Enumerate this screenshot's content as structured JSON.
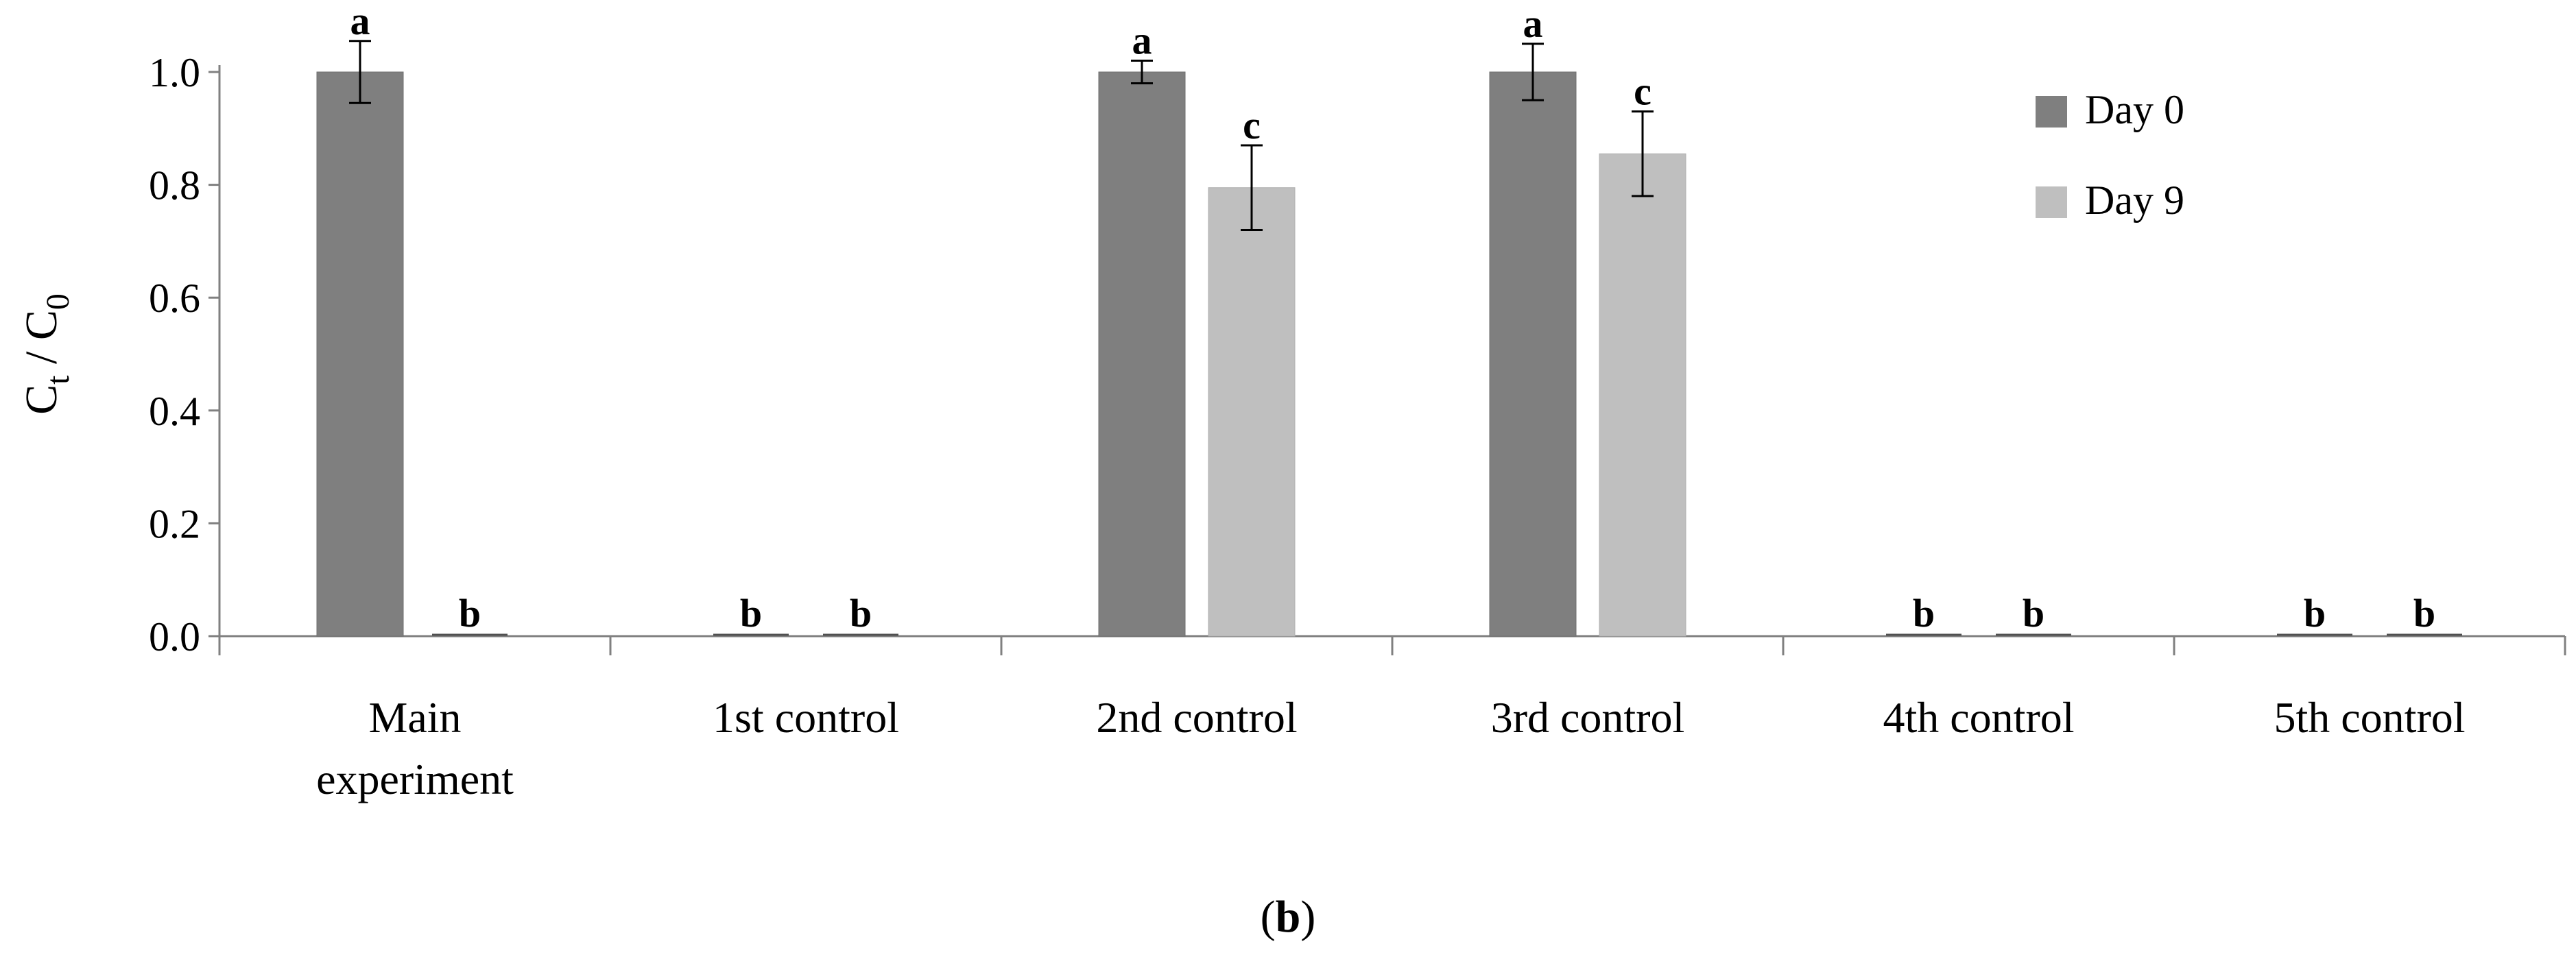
{
  "figure_label": {
    "open": "(",
    "letter": "b",
    "close": ")"
  },
  "chart_data": {
    "type": "bar",
    "ylabel": {
      "main": "C",
      "sub1": "t",
      "sep": " / C",
      "sub2": "0"
    },
    "xlabel": "",
    "ylim": [
      0,
      1.0
    ],
    "yticks": [
      "0.0",
      "0.2",
      "0.4",
      "0.6",
      "0.8",
      "1.0"
    ],
    "categories": [
      [
        "Main",
        "experiment"
      ],
      [
        "1st control"
      ],
      [
        "2nd control"
      ],
      [
        "3rd control"
      ],
      [
        "4th control"
      ],
      [
        "5th control"
      ]
    ],
    "series": [
      {
        "name": "Day 0",
        "color": "#7f7f7f",
        "values": [
          1.0,
          0.0,
          1.0,
          1.0,
          0.0,
          0.0
        ],
        "errors": [
          0.055,
          0.0,
          0.02,
          0.05,
          0.0,
          0.0
        ],
        "letters": [
          "a",
          "b",
          "a",
          "a",
          "b",
          "b"
        ]
      },
      {
        "name": "Day 9",
        "color": "#bfbfbf",
        "values": [
          0.0,
          0.0,
          0.795,
          0.855,
          0.0,
          0.0
        ],
        "errors": [
          0.0,
          0.0,
          0.075,
          0.075,
          0.0,
          0.0
        ],
        "letters": [
          "b",
          "b",
          "c",
          "c",
          "b",
          "b"
        ]
      }
    ],
    "legend_position": "top-right",
    "grid": false
  }
}
